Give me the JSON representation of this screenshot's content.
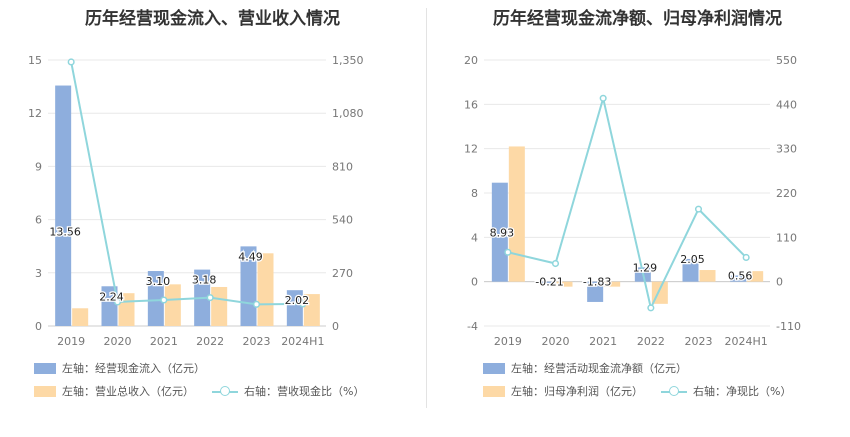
{
  "colors": {
    "blue_bar": "#8eaedd",
    "orange_bar": "#fdd9a6",
    "line": "#8fd6dc",
    "grid": "#e8e8e8",
    "axis_text": "#777777"
  },
  "left": {
    "title": "历年经营现金流入、营业收入情况",
    "legend": {
      "bar1": "左轴：经营现金流入（亿元）",
      "bar2": "左轴：营业总收入（亿元）",
      "line": "右轴：营收现金比（%）"
    }
  },
  "right": {
    "title": "历年经营现金流净额、归母净利润情况",
    "legend": {
      "bar1": "左轴：经营活动现金流净额（亿元）",
      "bar2": "左轴：归母净利润（亿元）",
      "line": "右轴：净现比（%）"
    }
  },
  "chart_data": [
    {
      "type": "bar",
      "title": "历年经营现金流入、营业收入情况",
      "categories": [
        "2019",
        "2020",
        "2021",
        "2022",
        "2023",
        "2024H1"
      ],
      "series": [
        {
          "name": "左轴：经营现金流入（亿元）",
          "axis": "left",
          "values": [
            13.56,
            2.24,
            3.1,
            3.18,
            4.49,
            2.02
          ],
          "data_labels": [
            "13.56",
            "2.24",
            "3.10",
            "3.18",
            "4.49",
            "2.02"
          ]
        },
        {
          "name": "左轴：营业总收入（亿元）",
          "axis": "left",
          "values": [
            1.0,
            1.85,
            2.35,
            2.2,
            4.1,
            1.8
          ]
        },
        {
          "name": "右轴：营收现金比（%）",
          "axis": "right",
          "type": "line",
          "values": [
            1340,
            122,
            132,
            144,
            110,
            112
          ]
        }
      ],
      "yleft": {
        "ylim": [
          0,
          15
        ],
        "ticks": [
          0,
          3,
          6,
          9,
          12,
          15
        ],
        "tick_labels": [
          "0",
          "3",
          "6",
          "9",
          "12",
          "15"
        ]
      },
      "yright": {
        "ylim": [
          0,
          1350
        ],
        "ticks": [
          0,
          270,
          540,
          810,
          1080,
          1350
        ],
        "tick_labels": [
          "0",
          "270",
          "540",
          "810",
          "1,080",
          "1,350"
        ]
      },
      "grid": true,
      "legend_position": "bottom-left"
    },
    {
      "type": "bar",
      "title": "历年经营现金流净额、归母净利润情况",
      "categories": [
        "2019",
        "2020",
        "2021",
        "2022",
        "2023",
        "2024H1"
      ],
      "series": [
        {
          "name": "左轴：经营活动现金流净额（亿元）",
          "axis": "left",
          "values": [
            8.93,
            -0.21,
            -1.83,
            1.29,
            2.05,
            0.56
          ],
          "data_labels": [
            "8.93",
            "-0.21",
            "-1.83",
            "1.29",
            "2.05",
            "0.56"
          ]
        },
        {
          "name": "左轴：归母净利润（亿元）",
          "axis": "left",
          "values": [
            12.2,
            -0.45,
            -0.45,
            -2.0,
            1.05,
            0.95
          ]
        },
        {
          "name": "右轴：净现比（%）",
          "axis": "right",
          "type": "line",
          "values": [
            73,
            45,
            455,
            -65,
            180,
            60
          ]
        }
      ],
      "yleft": {
        "ylim": [
          -4,
          20
        ],
        "ticks": [
          -4,
          0,
          4,
          8,
          12,
          16,
          20
        ],
        "tick_labels": [
          "-4",
          "0",
          "4",
          "8",
          "12",
          "16",
          "20"
        ]
      },
      "yright": {
        "ylim": [
          -110,
          550
        ],
        "ticks": [
          -110,
          0,
          110,
          220,
          330,
          440,
          550
        ],
        "tick_labels": [
          "-110",
          "0",
          "110",
          "220",
          "330",
          "440",
          "550"
        ]
      },
      "grid": true,
      "legend_position": "bottom-left"
    }
  ]
}
